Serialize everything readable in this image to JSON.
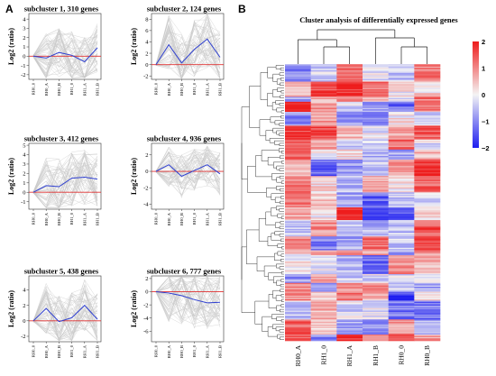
{
  "panel_a_label": "A",
  "panel_b_label": "B",
  "colors": {
    "background_lines": "#c8c8c8",
    "mean_line": "#2e3fd0",
    "zero_line": "#e03030",
    "heat_low": "#1d1df0",
    "heat_mid": "#f4f4f4",
    "heat_high": "#ee1c1c"
  },
  "chart_data": [
    {
      "type": "line",
      "title": "subcluster 1, 310 genes",
      "ylabel": "Log2 (ratio)",
      "categories": [
        "RH0_0",
        "RH0_A",
        "RH0_B",
        "RH1_0",
        "RH1_A",
        "RH1_B"
      ],
      "yticks": [
        -2,
        -1,
        0,
        1,
        2,
        3,
        4
      ],
      "ylim": [
        -2.5,
        4.6
      ],
      "series": [
        {
          "values": [
            0.0,
            -0.2,
            0.4,
            0.1,
            -0.6,
            0.9
          ]
        }
      ],
      "background_profiles": 310,
      "zero_line": 0,
      "grid": false
    },
    {
      "type": "line",
      "title": "subcluster 2, 124 genes",
      "ylabel": "Log2 (ratio)",
      "categories": [
        "RH0_0",
        "RH0_A",
        "RH0_B",
        "RH1_0",
        "RH1_A",
        "RH1_B"
      ],
      "yticks": [
        -2,
        0,
        2,
        4,
        6,
        8
      ],
      "ylim": [
        -2.6,
        9
      ],
      "series": [
        {
          "values": [
            0.0,
            3.5,
            0.3,
            2.7,
            4.5,
            1.3
          ]
        }
      ],
      "background_profiles": 124,
      "zero_line": 0,
      "grid": false
    },
    {
      "type": "line",
      "title": "subcluster 3, 412 genes",
      "ylabel": "Log2 (ratio)",
      "categories": [
        "RH0_0",
        "RH0_A",
        "RH0_B",
        "RH1_0",
        "RH1_A",
        "RH1_B"
      ],
      "yticks": [
        -1,
        0,
        1,
        2,
        3,
        4,
        5
      ],
      "ylim": [
        -1.8,
        5.2
      ],
      "series": [
        {
          "values": [
            0.0,
            0.7,
            0.6,
            1.5,
            1.6,
            1.4
          ]
        }
      ],
      "background_profiles": 412,
      "zero_line": 0,
      "grid": false
    },
    {
      "type": "line",
      "title": "subcluster 4, 936 genes",
      "ylabel": "Log2 (ratio)",
      "categories": [
        "RH0_0",
        "RH0_A",
        "RH0_B",
        "RH1_0",
        "RH1_A",
        "RH1_B"
      ],
      "yticks": [
        -4,
        -2,
        0,
        2
      ],
      "ylim": [
        -4.6,
        3.4
      ],
      "series": [
        {
          "values": [
            0.0,
            0.8,
            -0.6,
            0.1,
            0.8,
            -0.3
          ]
        }
      ],
      "background_profiles": 936,
      "zero_line": 0,
      "grid": false
    },
    {
      "type": "line",
      "title": "subcluster 5, 438 genes",
      "ylabel": "Log2 (ratio)",
      "categories": [
        "RH0_0",
        "RH0_A",
        "RH0_B",
        "RH1_0",
        "RH1_A",
        "RH1_B"
      ],
      "yticks": [
        -2,
        0,
        2,
        4
      ],
      "ylim": [
        -2.7,
        5.8
      ],
      "series": [
        {
          "values": [
            0.0,
            1.6,
            -0.1,
            0.4,
            2.0,
            0.2
          ]
        }
      ],
      "background_profiles": 438,
      "zero_line": 0,
      "grid": false
    },
    {
      "type": "line",
      "title": "subcluster 6, 777 genes",
      "ylabel": "Log2 (ratio)",
      "categories": [
        "RH0_0",
        "RH0_A",
        "RH0_B",
        "RH1_0",
        "RH1_A",
        "RH1_B"
      ],
      "yticks": [
        -6,
        -4,
        -2,
        0,
        2
      ],
      "ylim": [
        -7.6,
        2.4
      ],
      "series": [
        {
          "values": [
            0.0,
            -0.2,
            -0.6,
            -1.2,
            -1.7,
            -1.6
          ]
        }
      ],
      "background_profiles": 777,
      "zero_line": 0,
      "grid": false
    },
    {
      "type": "heatmap",
      "title": "Cluster analysis of differentially expressed genes",
      "columns": [
        "RH0_A",
        "RH1_0",
        "RH1_A",
        "RH1_B",
        "RH0_0",
        "RH0_B"
      ],
      "color_scale": {
        "min": -2,
        "max": 2,
        "ticks": [
          2,
          1,
          0,
          -1,
          -2
        ]
      },
      "row_dendrogram": true,
      "column_dendrogram": true,
      "legend_position": "right"
    }
  ]
}
